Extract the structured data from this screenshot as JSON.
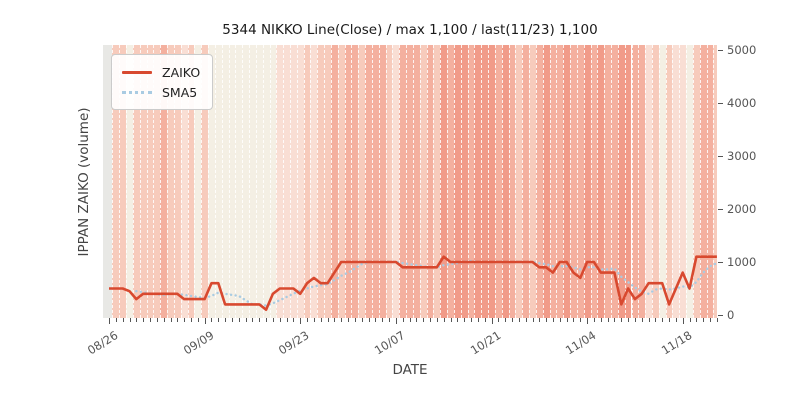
{
  "title": "5344 NIKKO Line(Close) / max 1,100 / last(11/23) 1,100",
  "axes": {
    "xlabel": "DATE",
    "ylabel": "IPPAN ZAIKO (volume)"
  },
  "legend": {
    "items": [
      {
        "label": "ZAIKO",
        "style": "solid",
        "color": "#d8492f"
      },
      {
        "label": "SMA5",
        "style": "dotted",
        "color": "#a9cbe2"
      }
    ]
  },
  "chart_data": {
    "type": "line",
    "title": "5344 NIKKO Line(Close) / max 1,100 / last(11/23) 1,100",
    "xlabel": "DATE",
    "ylabel": "IPPAN ZAIKO (volume)",
    "ylim": [
      0,
      5000
    ],
    "grid": "none",
    "legend_position": "upper-left",
    "x_start_date": "08/26",
    "x_end_date": "11/23",
    "x_days": 90,
    "yticks": [
      0,
      1000,
      2000,
      3000,
      4000,
      5000
    ],
    "x_major_ticks": [
      {
        "index": 0,
        "label": "08/26"
      },
      {
        "index": 14,
        "label": "09/09"
      },
      {
        "index": 28,
        "label": "09/23"
      },
      {
        "index": 42,
        "label": "10/07"
      },
      {
        "index": 56,
        "label": "10/21"
      },
      {
        "index": 70,
        "label": "11/04"
      },
      {
        "index": 84,
        "label": "11/18"
      }
    ],
    "series": [
      {
        "name": "ZAIKO",
        "style": "solid",
        "color": "#d8492f",
        "values": [
          500,
          500,
          500,
          450,
          300,
          400,
          400,
          400,
          400,
          400,
          400,
          300,
          300,
          300,
          300,
          600,
          600,
          200,
          200,
          200,
          200,
          200,
          200,
          100,
          400,
          500,
          500,
          500,
          400,
          600,
          700,
          600,
          600,
          800,
          1000,
          1000,
          1000,
          1000,
          1000,
          1000,
          1000,
          1000,
          1000,
          900,
          900,
          900,
          900,
          900,
          900,
          1100,
          1000,
          1000,
          1000,
          1000,
          1000,
          1000,
          1000,
          1000,
          1000,
          1000,
          1000,
          1000,
          1000,
          900,
          900,
          800,
          1000,
          1000,
          800,
          700,
          1000,
          1000,
          800,
          800,
          800,
          200,
          500,
          300,
          400,
          600,
          600,
          600,
          200,
          500,
          800,
          500,
          1100,
          1100,
          1100,
          1100
        ]
      },
      {
        "name": "SMA5",
        "style": "dotted",
        "color": "#a9cbe2",
        "derived": "5-day moving average of ZAIKO"
      }
    ],
    "background": {
      "description": "per-day vertical heat stripes",
      "palette": {
        "G": "#e8e8e5",
        "0": "#f4efe4",
        "1": "#f9ded4",
        "2": "#f7cbbc",
        "3": "#f4b09f",
        "4": "#f19b89"
      },
      "day_levels": "G2202222322120200000000001111212232332333213332324344344434323234334334343344331202110233234 44G"
    }
  }
}
